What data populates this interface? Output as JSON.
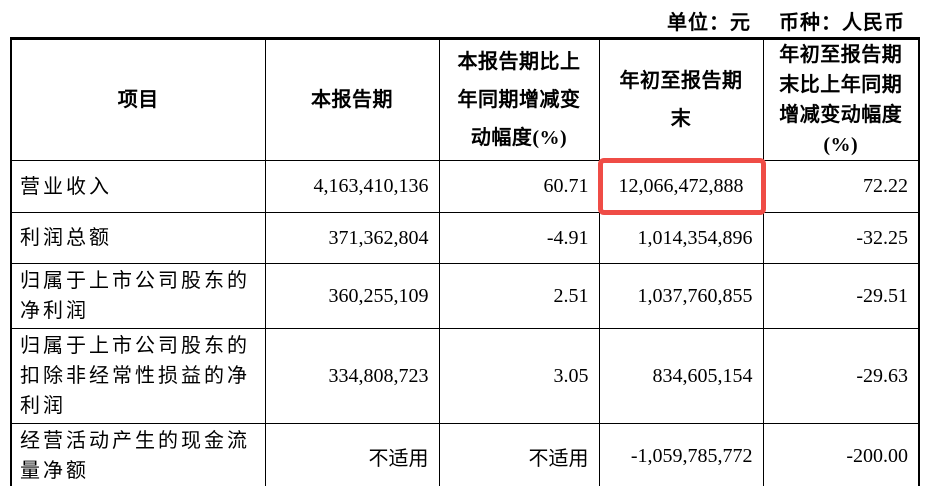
{
  "meta": {
    "unit_label": "单位：元",
    "currency_label": "币种：人民币"
  },
  "highlight_color": "#ef4c46",
  "table": {
    "headers": [
      "项目",
      "本报告期",
      "本报告期比上年同期增减变动幅度(%)",
      "年初至报告期末",
      "年初至报告期末比上年同期增减变动幅度(%)"
    ],
    "rows": [
      {
        "item": "营业收入",
        "current_period": "4,163,410,136",
        "yoy_change": "60.71",
        "ytd": "12,066,472,888",
        "ytd_yoy_change": "72.22",
        "highlighted": true
      },
      {
        "item": "利润总额",
        "current_period": "371,362,804",
        "yoy_change": "-4.91",
        "ytd": "1,014,354,896",
        "ytd_yoy_change": "-32.25",
        "highlighted": false
      },
      {
        "item": "归属于上市公司股东的净利润",
        "current_period": "360,255,109",
        "yoy_change": "2.51",
        "ytd": "1,037,760,855",
        "ytd_yoy_change": "-29.51",
        "highlighted": false
      },
      {
        "item": "归属于上市公司股东的扣除非经常性损益的净利润",
        "current_period": "334,808,723",
        "yoy_change": "3.05",
        "ytd": "834,605,154",
        "ytd_yoy_change": "-29.63",
        "highlighted": false
      },
      {
        "item": "经营活动产生的现金流量净额",
        "current_period": "不适用",
        "yoy_change": "不适用",
        "ytd": "-1,059,785,772",
        "ytd_yoy_change": "-200.00",
        "highlighted": false
      }
    ]
  }
}
